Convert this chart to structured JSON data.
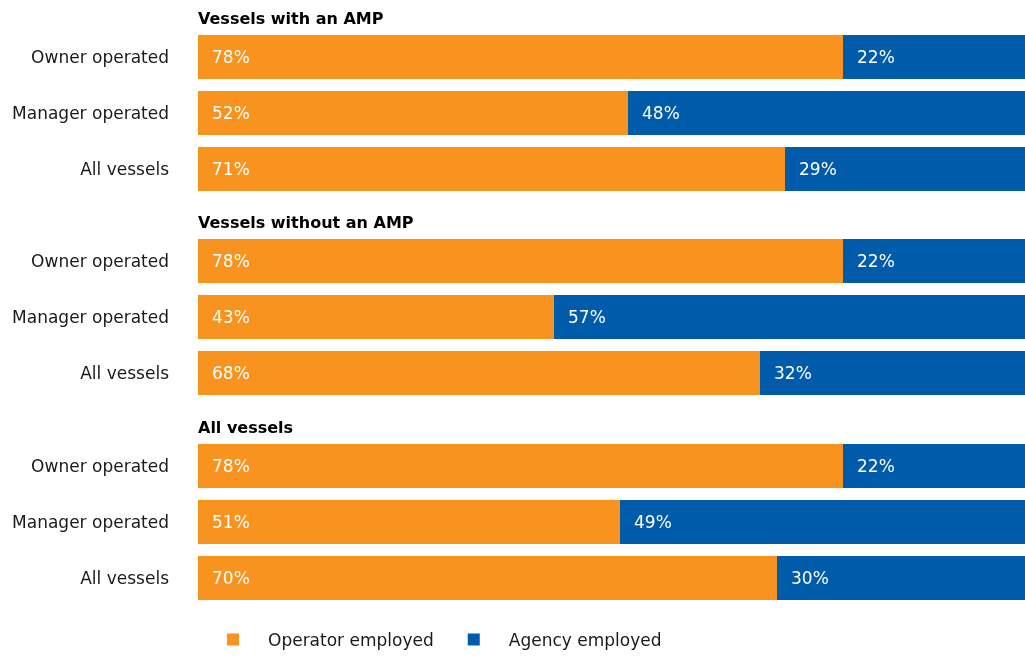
{
  "chart_data": [
    {
      "type": "bar",
      "title": "Vessels with an AMP",
      "orientation": "horizontal",
      "stacked": true,
      "categories": [
        "Owner operated",
        "Manager operated",
        "All vessels"
      ],
      "xlim": [
        0,
        100
      ],
      "tick_labels": "y",
      "series": [
        {
          "color": "#f7931e",
          "values": [
            78,
            52,
            71
          ],
          "value_labels": [
            "78%",
            "52%",
            "71%"
          ]
        },
        {
          "color": "#005baa",
          "values": [
            22,
            48,
            29
          ],
          "value_labels": [
            "22%",
            "48%",
            "29%"
          ]
        }
      ]
    },
    {
      "type": "bar",
      "title": "Vessels without an AMP",
      "orientation": "horizontal",
      "stacked": true,
      "categories": [
        "Owner operated",
        "Manager operated",
        "All vessels"
      ],
      "xlim": [
        0,
        100
      ],
      "tick_labels": "y",
      "series": [
        {
          "color": "#f7931e",
          "values": [
            78,
            43,
            68
          ],
          "value_labels": [
            "78%",
            "43%",
            "68%"
          ]
        },
        {
          "color": "#005baa",
          "values": [
            22,
            57,
            32
          ],
          "value_labels": [
            "22%",
            "57%",
            "32%"
          ]
        }
      ]
    },
    {
      "type": "bar",
      "title": "All vessels",
      "orientation": "horizontal",
      "stacked": true,
      "categories": [
        "Owner operated",
        "Manager operated",
        "All vessels"
      ],
      "xlim": [
        0,
        100
      ],
      "tick_labels": "y",
      "legend": "bottom",
      "series": [
        {
          "name": "Operator employed",
          "color": "#f7931e",
          "values": [
            78,
            51,
            70
          ],
          "value_labels": [
            "78%",
            "51%",
            "70%"
          ]
        },
        {
          "name": "Agency employed",
          "color": "#005baa",
          "values": [
            22,
            49,
            30
          ],
          "value_labels": [
            "22%",
            "49%",
            "30%"
          ]
        }
      ]
    }
  ]
}
